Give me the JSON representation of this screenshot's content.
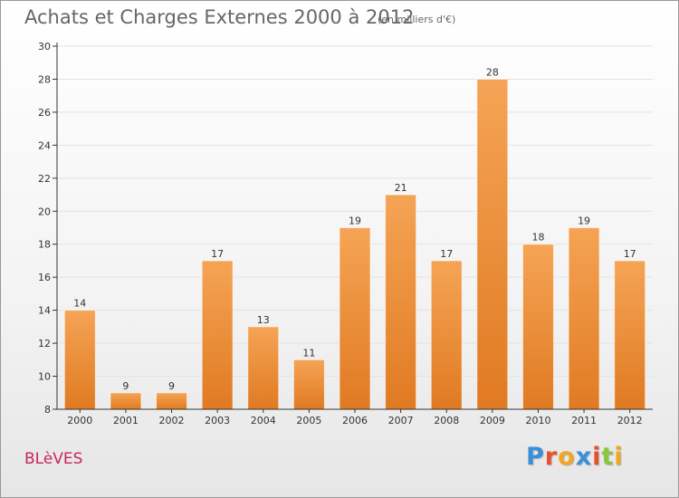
{
  "header": {
    "title": "Achats et Charges Externes 2000 à 2012",
    "subtitle": "(en milliers d'€)"
  },
  "footer": {
    "commune": "BLèVES",
    "logo_letters": [
      "P",
      "r",
      "o",
      "x",
      "i",
      "t",
      "i"
    ],
    "logo_colors": [
      "#3a8fd9",
      "#e8502e",
      "#f2a623",
      "#3a8fd9",
      "#e8502e",
      "#8cc63f",
      "#f2a623"
    ]
  },
  "colors": {
    "bar_top": "#f5a455",
    "bar_bottom": "#e07a22",
    "axis": "#333333",
    "grid": "#e3e3e3"
  },
  "chart_data": {
    "type": "bar",
    "title": "Achats et Charges Externes 2000 à 2012",
    "subtitle": "(en milliers d'€)",
    "xlabel": "",
    "ylabel": "",
    "categories": [
      "2000",
      "2001",
      "2002",
      "2003",
      "2004",
      "2005",
      "2006",
      "2007",
      "2008",
      "2009",
      "2010",
      "2011",
      "2012"
    ],
    "values": [
      14,
      9,
      9,
      17,
      13,
      11,
      19,
      21,
      17,
      28,
      18,
      19,
      17
    ],
    "data_labels": [
      "14",
      "9",
      "9",
      "17",
      "13",
      "11",
      "19",
      "21",
      "17",
      "28",
      "18",
      "19",
      "17"
    ],
    "ylim": [
      8,
      30
    ],
    "yticks": [
      8,
      10,
      12,
      14,
      16,
      18,
      20,
      22,
      24,
      26,
      28,
      30
    ],
    "grid": true,
    "legend": "none"
  }
}
